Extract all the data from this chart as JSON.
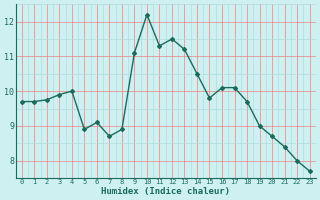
{
  "x": [
    0,
    1,
    2,
    3,
    4,
    5,
    6,
    7,
    8,
    9,
    10,
    11,
    12,
    13,
    14,
    15,
    16,
    17,
    18,
    19,
    20,
    21,
    22,
    23
  ],
  "y": [
    9.7,
    9.7,
    9.75,
    9.9,
    10.0,
    8.9,
    9.1,
    8.7,
    8.9,
    11.1,
    12.2,
    11.3,
    11.5,
    11.2,
    10.5,
    9.8,
    10.1,
    10.1,
    9.7,
    9.0,
    8.7,
    8.4,
    8.0,
    7.7
  ],
  "xlabel": "Humidex (Indice chaleur)",
  "bg_color": "#cff0f0",
  "line_color": "#1a6b5e",
  "marker_color": "#1a6b5e",
  "grid_major_color": "#f08080",
  "grid_minor_color": "#b0dcdc",
  "tick_color": "#1a6b5e",
  "xlabel_color": "#1a6b5e",
  "ylim": [
    7.5,
    12.5
  ],
  "yticks": [
    8,
    9,
    10,
    11,
    12
  ],
  "xticks": [
    0,
    1,
    2,
    3,
    4,
    5,
    6,
    7,
    8,
    9,
    10,
    11,
    12,
    13,
    14,
    15,
    16,
    17,
    18,
    19,
    20,
    21,
    22,
    23
  ]
}
